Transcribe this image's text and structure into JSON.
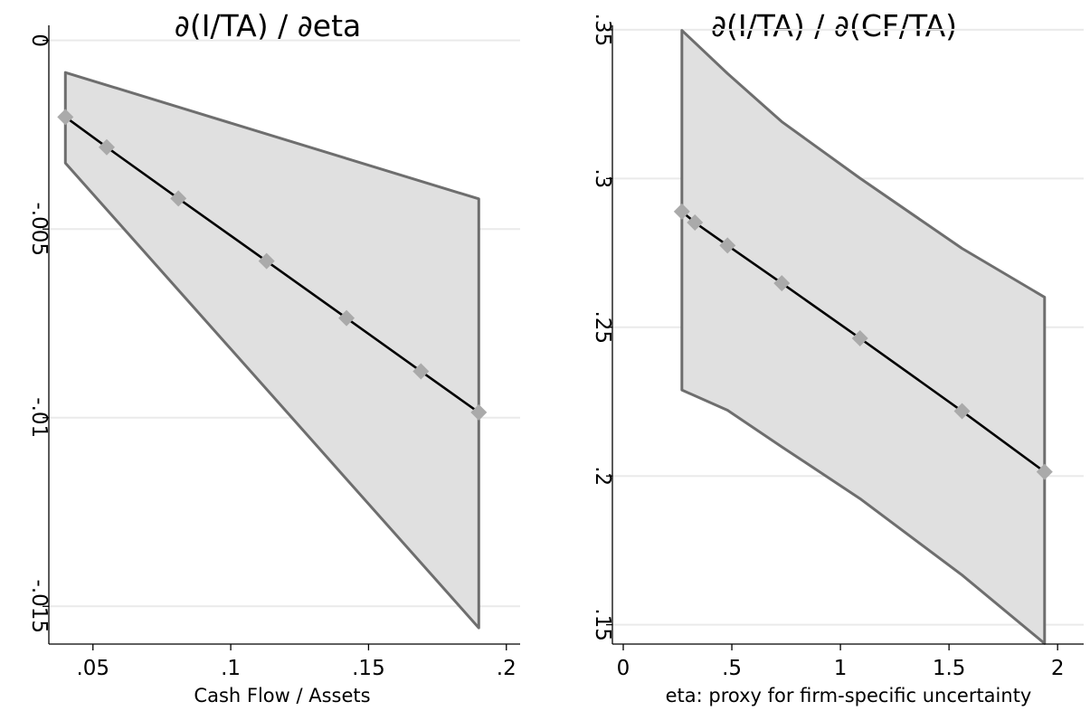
{
  "chart_data": [
    {
      "type": "line",
      "title": "∂(I/TA) / ∂eta",
      "xlabel": "Cash Flow / Assets",
      "ylabel": "",
      "xlim": [
        0.034,
        0.205
      ],
      "ylim": [
        -0.016,
        0.0004
      ],
      "x_ticks": [
        0.05,
        0.1,
        0.15,
        0.2
      ],
      "x_tick_labels": [
        ".05",
        ".1",
        ".15",
        ".2"
      ],
      "y_ticks": [
        0,
        -0.005,
        -0.01,
        -0.015
      ],
      "y_tick_labels": [
        "0",
        "-.005",
        "-.01",
        "-.015"
      ],
      "grid": true,
      "series": [
        {
          "x": [
            0.04,
            0.055,
            0.081,
            0.113,
            0.142,
            0.169,
            0.19
          ],
          "y": [
            -0.00203,
            -0.00283,
            -0.00419,
            -0.00585,
            -0.00736,
            -0.00877,
            -0.00986
          ]
        }
      ],
      "confidence_band": {
        "x": [
          0.04,
          0.19
        ],
        "lower": [
          -0.00325,
          -0.01557
        ],
        "upper": [
          -0.00085,
          -0.0042
        ]
      },
      "colors": {
        "band_fill": "#e0e0e0",
        "band_edge": "#6e6e6e",
        "line": "#000000",
        "marker": "#aaaaaa",
        "grid": "#eaeaea"
      }
    },
    {
      "type": "line",
      "title": "∂(I/TA) / ∂(CF/TA)",
      "xlabel": "eta: proxy for firm-specific uncertainty",
      "ylabel": "",
      "xlim": [
        -0.05,
        2.12
      ],
      "ylim": [
        0.1435,
        0.3515
      ],
      "x_ticks": [
        0,
        0.5,
        1,
        1.5,
        2
      ],
      "x_tick_labels": [
        "0",
        ".5",
        "1",
        "1.5",
        "2"
      ],
      "y_ticks": [
        0.15,
        0.2,
        0.25,
        0.3,
        0.35
      ],
      "y_tick_labels": [
        ".15",
        ".2",
        ".25",
        ".3",
        ".35"
      ],
      "grid": true,
      "series": [
        {
          "x": [
            0.27,
            0.33,
            0.48,
            0.73,
            1.09,
            1.56,
            1.94
          ],
          "y": [
            0.2889,
            0.2852,
            0.2775,
            0.2648,
            0.2463,
            0.2218,
            0.2014
          ]
        }
      ],
      "confidence_band": {
        "x": [
          0.27,
          0.48,
          0.73,
          1.09,
          1.56,
          1.94
        ],
        "lower": [
          0.2289,
          0.2221,
          0.2098,
          0.1924,
          0.1667,
          0.1437
        ],
        "upper": [
          0.3498,
          0.3353,
          0.3191,
          0.3001,
          0.2765,
          0.2601
        ]
      },
      "colors": {
        "band_fill": "#e0e0e0",
        "band_edge": "#6e6e6e",
        "line": "#000000",
        "marker": "#aaaaaa",
        "grid": "#eaeaea"
      }
    }
  ]
}
